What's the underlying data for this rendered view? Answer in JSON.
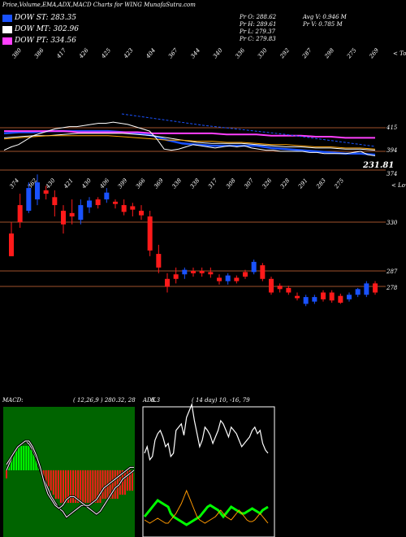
{
  "header": {
    "title": "Price,Volume,EMA,ADX,MACD Charts for WING MunafaSutra.com",
    "pr_open": "Pr  O: 288.62",
    "pr_high": "Pr  H: 289.61",
    "pr_low": "Pr  L: 279.37",
    "pr_close": "Pr  C: 279.83",
    "avg_vol": "Avg V: 0.946  M",
    "pr_vol": "Pr  V: 0.785 M"
  },
  "legend": [
    {
      "label": "DOW ST: 283.35",
      "color": "#1a52ff"
    },
    {
      "label": "DOW MT: 302.96",
      "color": "#ffffff"
    },
    {
      "label": "DOW PT: 334.56",
      "color": "#ff40ff"
    }
  ],
  "colors": {
    "up": "#1a52ff",
    "down": "#ff1a1a",
    "hline": "#a0522d",
    "green": "#00ff00",
    "orange": "#ff9900"
  },
  "chart_data": [
    {
      "type": "line",
      "name": "ema_panel",
      "top_ticks": [
        "380",
        "386",
        "417",
        "426",
        "425",
        "423",
        "404",
        "367",
        "344",
        "340",
        "336",
        "330",
        "292",
        "287",
        "298",
        "275",
        "269"
      ],
      "corner_label": "< Tops",
      "hline_labels": [
        "415",
        "394",
        "374"
      ],
      "current_value": "231.81",
      "series_colors": [
        "#ffffff",
        "#1a52ff",
        "#ff40ff",
        "#ffffff",
        "#ffa500",
        "#d2b48c"
      ],
      "price": [
        395,
        398,
        400,
        404,
        408,
        410,
        412,
        414,
        415,
        416,
        416,
        417,
        418,
        419,
        419,
        420,
        419,
        418,
        416,
        414,
        412,
        405,
        396,
        395,
        396,
        398,
        400,
        399,
        398,
        397,
        398,
        399,
        398,
        399,
        397,
        396,
        395,
        395,
        394,
        394,
        394,
        394,
        393,
        393,
        392,
        392,
        392,
        392,
        393,
        394,
        391,
        390
      ],
      "emas": [
        {
          "name": "ema_fast",
          "values": [
            410,
            411,
            411,
            412,
            412,
            412,
            412,
            412,
            411,
            410,
            408,
            404,
            401,
            400,
            399,
            399,
            399,
            399,
            397,
            396,
            395,
            394,
            393,
            392,
            392,
            391
          ]
        },
        {
          "name": "ema_magenta",
          "values": [
            412,
            412,
            412,
            412,
            412,
            411,
            411,
            411,
            411,
            411,
            410,
            410,
            410,
            410,
            410,
            409,
            409,
            409,
            408,
            408,
            408,
            407,
            407,
            406,
            406,
            406
          ]
        },
        {
          "name": "ema_mid",
          "values": [
            406,
            407,
            408,
            408,
            409,
            410,
            410,
            410,
            410,
            409,
            408,
            406,
            404,
            402,
            401,
            401,
            401,
            400,
            399,
            398,
            398,
            397,
            397,
            396,
            396,
            395
          ]
        },
        {
          "name": "ema_orange",
          "values": [
            405,
            406,
            407,
            408,
            408,
            408,
            408,
            408,
            407,
            406,
            405,
            404,
            404,
            403,
            403,
            402,
            402,
            401,
            400,
            400,
            399,
            398,
            398,
            397,
            397,
            396
          ]
        }
      ]
    },
    {
      "type": "candlestick",
      "name": "price_panel",
      "top_ticks": [
        "374",
        "362",
        "430",
        "421",
        "430",
        "406",
        "399",
        "366",
        "369",
        "338",
        "338",
        "317",
        "308",
        "307",
        "326",
        "328",
        "291",
        "283",
        "275"
      ],
      "corner_label": "< Lows",
      "hline_labels": [
        "330",
        "287",
        "278"
      ],
      "candles": [
        {
          "o": 300,
          "h": 330,
          "l": 300,
          "c": 320,
          "up": false
        },
        {
          "o": 330,
          "h": 355,
          "l": 325,
          "c": 345,
          "up": false
        },
        {
          "o": 340,
          "h": 365,
          "l": 338,
          "c": 360,
          "up": true
        },
        {
          "o": 350,
          "h": 372,
          "l": 345,
          "c": 365,
          "up": true
        },
        {
          "o": 355,
          "h": 362,
          "l": 350,
          "c": 358,
          "up": false
        },
        {
          "o": 345,
          "h": 358,
          "l": 335,
          "c": 352,
          "up": false
        },
        {
          "o": 328,
          "h": 345,
          "l": 320,
          "c": 340,
          "up": false
        },
        {
          "o": 335,
          "h": 350,
          "l": 328,
          "c": 338,
          "up": false
        },
        {
          "o": 332,
          "h": 350,
          "l": 328,
          "c": 345,
          "up": true
        },
        {
          "o": 343,
          "h": 352,
          "l": 338,
          "c": 349,
          "up": true
        },
        {
          "o": 345,
          "h": 352,
          "l": 342,
          "c": 350,
          "up": false
        },
        {
          "o": 350,
          "h": 360,
          "l": 347,
          "c": 356,
          "up": true
        },
        {
          "o": 346,
          "h": 350,
          "l": 342,
          "c": 348,
          "up": false
        },
        {
          "o": 339,
          "h": 350,
          "l": 336,
          "c": 345,
          "up": false
        },
        {
          "o": 341,
          "h": 347,
          "l": 335,
          "c": 344,
          "up": false
        },
        {
          "o": 336,
          "h": 345,
          "l": 332,
          "c": 340,
          "up": false
        },
        {
          "o": 305,
          "h": 340,
          "l": 300,
          "c": 335,
          "up": false
        },
        {
          "o": 290,
          "h": 310,
          "l": 285,
          "c": 302,
          "up": false
        },
        {
          "o": 273,
          "h": 285,
          "l": 268,
          "c": 280,
          "up": false
        },
        {
          "o": 280,
          "h": 290,
          "l": 276,
          "c": 284,
          "up": false
        },
        {
          "o": 284,
          "h": 290,
          "l": 280,
          "c": 288,
          "up": true
        },
        {
          "o": 285,
          "h": 290,
          "l": 282,
          "c": 287,
          "up": false
        },
        {
          "o": 285,
          "h": 290,
          "l": 282,
          "c": 287,
          "up": false
        },
        {
          "o": 284,
          "h": 290,
          "l": 281,
          "c": 286,
          "up": false
        },
        {
          "o": 278,
          "h": 284,
          "l": 275,
          "c": 281,
          "up": false
        },
        {
          "o": 278,
          "h": 285,
          "l": 275,
          "c": 283,
          "up": true
        },
        {
          "o": 278,
          "h": 283,
          "l": 276,
          "c": 281,
          "up": false
        },
        {
          "o": 282,
          "h": 288,
          "l": 280,
          "c": 286,
          "up": false
        },
        {
          "o": 286,
          "h": 297,
          "l": 284,
          "c": 295,
          "up": true
        },
        {
          "o": 280,
          "h": 294,
          "l": 278,
          "c": 292,
          "up": false
        },
        {
          "o": 268,
          "h": 282,
          "l": 266,
          "c": 280,
          "up": false
        },
        {
          "o": 271,
          "h": 276,
          "l": 268,
          "c": 274,
          "up": false
        },
        {
          "o": 268,
          "h": 274,
          "l": 266,
          "c": 272,
          "up": false
        },
        {
          "o": 263,
          "h": 268,
          "l": 261,
          "c": 265,
          "up": false
        },
        {
          "o": 258,
          "h": 266,
          "l": 256,
          "c": 264,
          "up": true
        },
        {
          "o": 260,
          "h": 266,
          "l": 258,
          "c": 264,
          "up": true
        },
        {
          "o": 262,
          "h": 270,
          "l": 260,
          "c": 268,
          "up": false
        },
        {
          "o": 261,
          "h": 270,
          "l": 259,
          "c": 268,
          "up": false
        },
        {
          "o": 259,
          "h": 267,
          "l": 258,
          "c": 265,
          "up": false
        },
        {
          "o": 262,
          "h": 268,
          "l": 260,
          "c": 266,
          "up": true
        },
        {
          "o": 266,
          "h": 272,
          "l": 264,
          "c": 271,
          "up": true
        },
        {
          "o": 266,
          "h": 278,
          "l": 264,
          "c": 276,
          "up": true
        },
        {
          "o": 268,
          "h": 278,
          "l": 266,
          "c": 276,
          "up": false
        }
      ]
    },
    {
      "type": "bar",
      "name": "macd_panel",
      "label": "MACD:",
      "params": "( 12,26,9 ) 280.32,  28",
      "histogram": [
        -2,
        1,
        3,
        4,
        5,
        6,
        6,
        6,
        6,
        6,
        5,
        4,
        3,
        1,
        -1,
        -2,
        -3,
        -4,
        -5,
        -6,
        -7,
        -7,
        -8,
        -8,
        -8,
        -8,
        -8,
        -8,
        -8,
        -8,
        -8,
        -8,
        -8,
        -8,
        -8,
        -8,
        -8,
        -8,
        -8,
        -7,
        -7,
        -7,
        -7,
        -7,
        -7,
        -7,
        -6,
        -6,
        -6,
        -5,
        -5,
        -5
      ],
      "line_a": [
        0,
        3,
        6,
        8,
        9,
        10,
        9,
        7,
        4,
        0,
        -3,
        -6,
        -9,
        -11,
        -13,
        -14,
        -16,
        -15,
        -14,
        -13,
        -12,
        -12,
        -13,
        -14,
        -15,
        -14,
        -12,
        -10,
        -8,
        -6,
        -5,
        -3,
        -2,
        -1,
        0
      ],
      "line_b": [
        2,
        4,
        6,
        8,
        9,
        10,
        10,
        8,
        5,
        1,
        -4,
        -8,
        -10,
        -12,
        -13,
        -12,
        -10,
        -9,
        -9,
        -10,
        -11,
        -12,
        -12,
        -11,
        -10,
        -8,
        -6,
        -5,
        -4,
        -3,
        -2,
        -1,
        0,
        1,
        1
      ]
    },
    {
      "type": "line",
      "name": "adx_panel",
      "label": "ADX",
      "params": "( 14  day)  10,  -16,  79",
      "overlay": "6.3",
      "adx": [
        44,
        48,
        40,
        42,
        52,
        56,
        58,
        54,
        48,
        50,
        42,
        44,
        58,
        60,
        62,
        55,
        66,
        70,
        74,
        64,
        56,
        48,
        52,
        60,
        58,
        55,
        50,
        54,
        58,
        64,
        62,
        58,
        54,
        60,
        58,
        56,
        52,
        48,
        50,
        52,
        54,
        58,
        60,
        56,
        58,
        50,
        46,
        44
      ],
      "plus_di": [
        8,
        7,
        6,
        7,
        8,
        9,
        8,
        7,
        6,
        6,
        8,
        10,
        12,
        15,
        18,
        22,
        26,
        22,
        18,
        14,
        10,
        8,
        7,
        6,
        7,
        8,
        9,
        10,
        12,
        14,
        12,
        10,
        9,
        8,
        10,
        12,
        14,
        12,
        10,
        8,
        7,
        7,
        8,
        10,
        12,
        10,
        8,
        6
      ],
      "minus_di": [
        10,
        12,
        14,
        16,
        18,
        20,
        19,
        18,
        17,
        16,
        12,
        10,
        9,
        8,
        7,
        6,
        5,
        6,
        7,
        8,
        9,
        10,
        12,
        14,
        16,
        17,
        16,
        15,
        14,
        12,
        10,
        12,
        14,
        16,
        15,
        14,
        13,
        12,
        12,
        13,
        14,
        15,
        14,
        13,
        12,
        14,
        15,
        16
      ]
    }
  ]
}
